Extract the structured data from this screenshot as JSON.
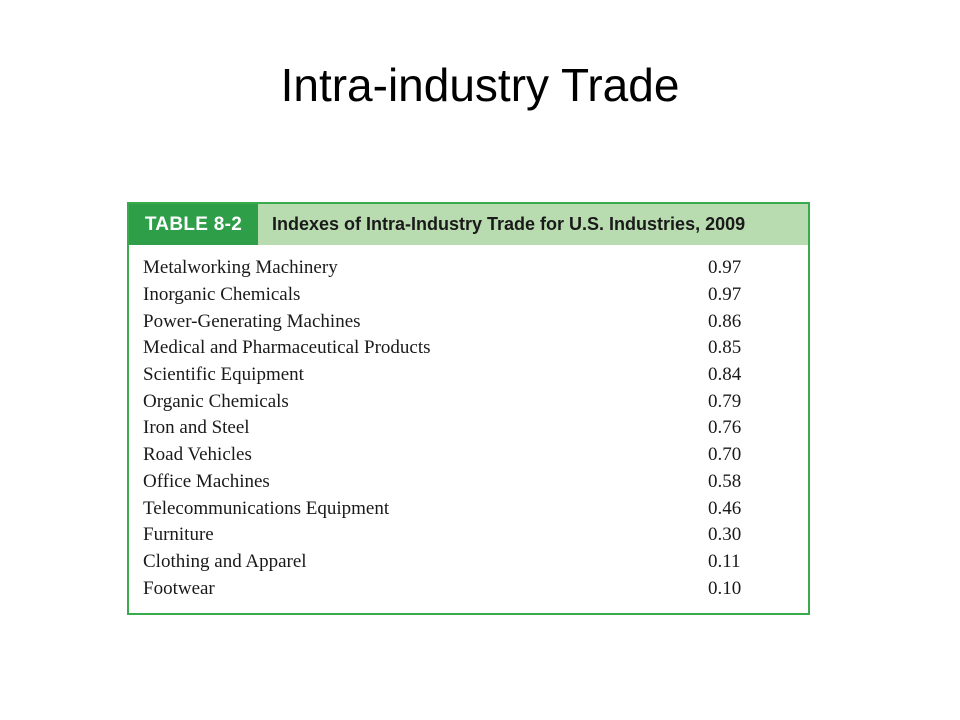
{
  "slide": {
    "title": "Intra-industry Trade"
  },
  "table": {
    "label": "TABLE 8-2",
    "caption": "Indexes of Intra-Industry Trade for U.S. Industries, 2009",
    "rows": [
      {
        "industry": "Metalworking Machinery",
        "index": "0.97"
      },
      {
        "industry": "Inorganic Chemicals",
        "index": "0.97"
      },
      {
        "industry": "Power-Generating Machines",
        "index": "0.86"
      },
      {
        "industry": "Medical and Pharmaceutical Products",
        "index": "0.85"
      },
      {
        "industry": "Scientific Equipment",
        "index": "0.84"
      },
      {
        "industry": "Organic Chemicals",
        "index": "0.79"
      },
      {
        "industry": "Iron and Steel",
        "index": "0.76"
      },
      {
        "industry": "Road Vehicles",
        "index": "0.70"
      },
      {
        "industry": "Office Machines",
        "index": "0.58"
      },
      {
        "industry": "Telecommunications Equipment",
        "index": "0.46"
      },
      {
        "industry": "Furniture",
        "index": "0.30"
      },
      {
        "industry": "Clothing and Apparel",
        "index": "0.11"
      },
      {
        "industry": "Footwear",
        "index": "0.10"
      }
    ]
  },
  "colors": {
    "accent_green": "#2e9e48",
    "border_green": "#3aaa4e",
    "caption_bg": "#b8dcb0"
  }
}
